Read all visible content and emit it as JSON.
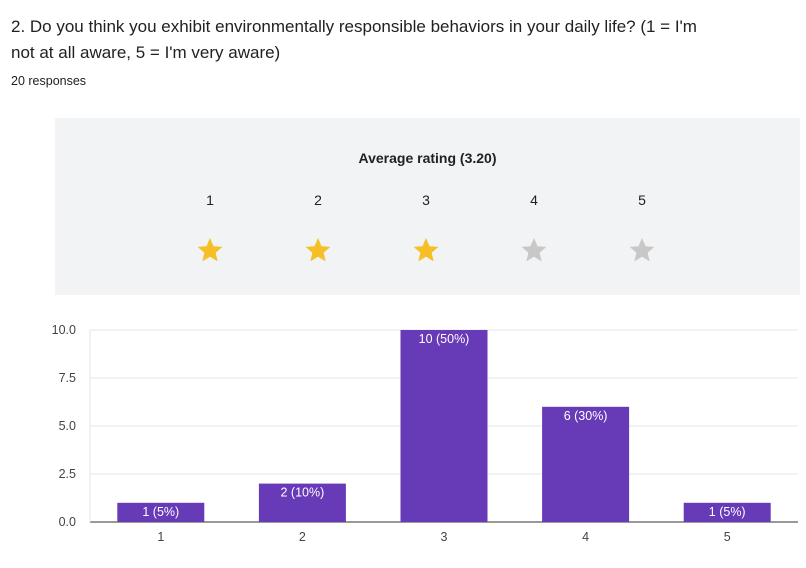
{
  "question": {
    "title": "2. Do you think you exhibit environmentally responsible behaviors in your daily life? (1 = I'm not at all aware, 5 = I'm very aware)",
    "responses_count": "20 responses"
  },
  "rating": {
    "title": "Average rating (3.20)",
    "average": 3.2,
    "filled_color": "#f6bf26",
    "empty_color": "#c8c8c8",
    "stars": [
      {
        "label": "1",
        "filled": true
      },
      {
        "label": "2",
        "filled": true
      },
      {
        "label": "3",
        "filled": true
      },
      {
        "label": "4",
        "filled": false
      },
      {
        "label": "5",
        "filled": false
      }
    ]
  },
  "chart_data": {
    "type": "bar",
    "title": "",
    "xlabel": "",
    "ylabel": "",
    "categories": [
      "1",
      "2",
      "3",
      "4",
      "5"
    ],
    "values": [
      1,
      2,
      10,
      6,
      1
    ],
    "data_labels": [
      "1 (5%)",
      "2 (10%)",
      "10 (50%)",
      "6 (30%)",
      "1 (5%)"
    ],
    "ylim": [
      0,
      10
    ],
    "yticks": [
      "0.0",
      "2.5",
      "5.0",
      "7.5",
      "10.0"
    ],
    "ytick_values": [
      0,
      2.5,
      5,
      7.5,
      10
    ],
    "grid": true,
    "bar_color": "#673ab7"
  }
}
